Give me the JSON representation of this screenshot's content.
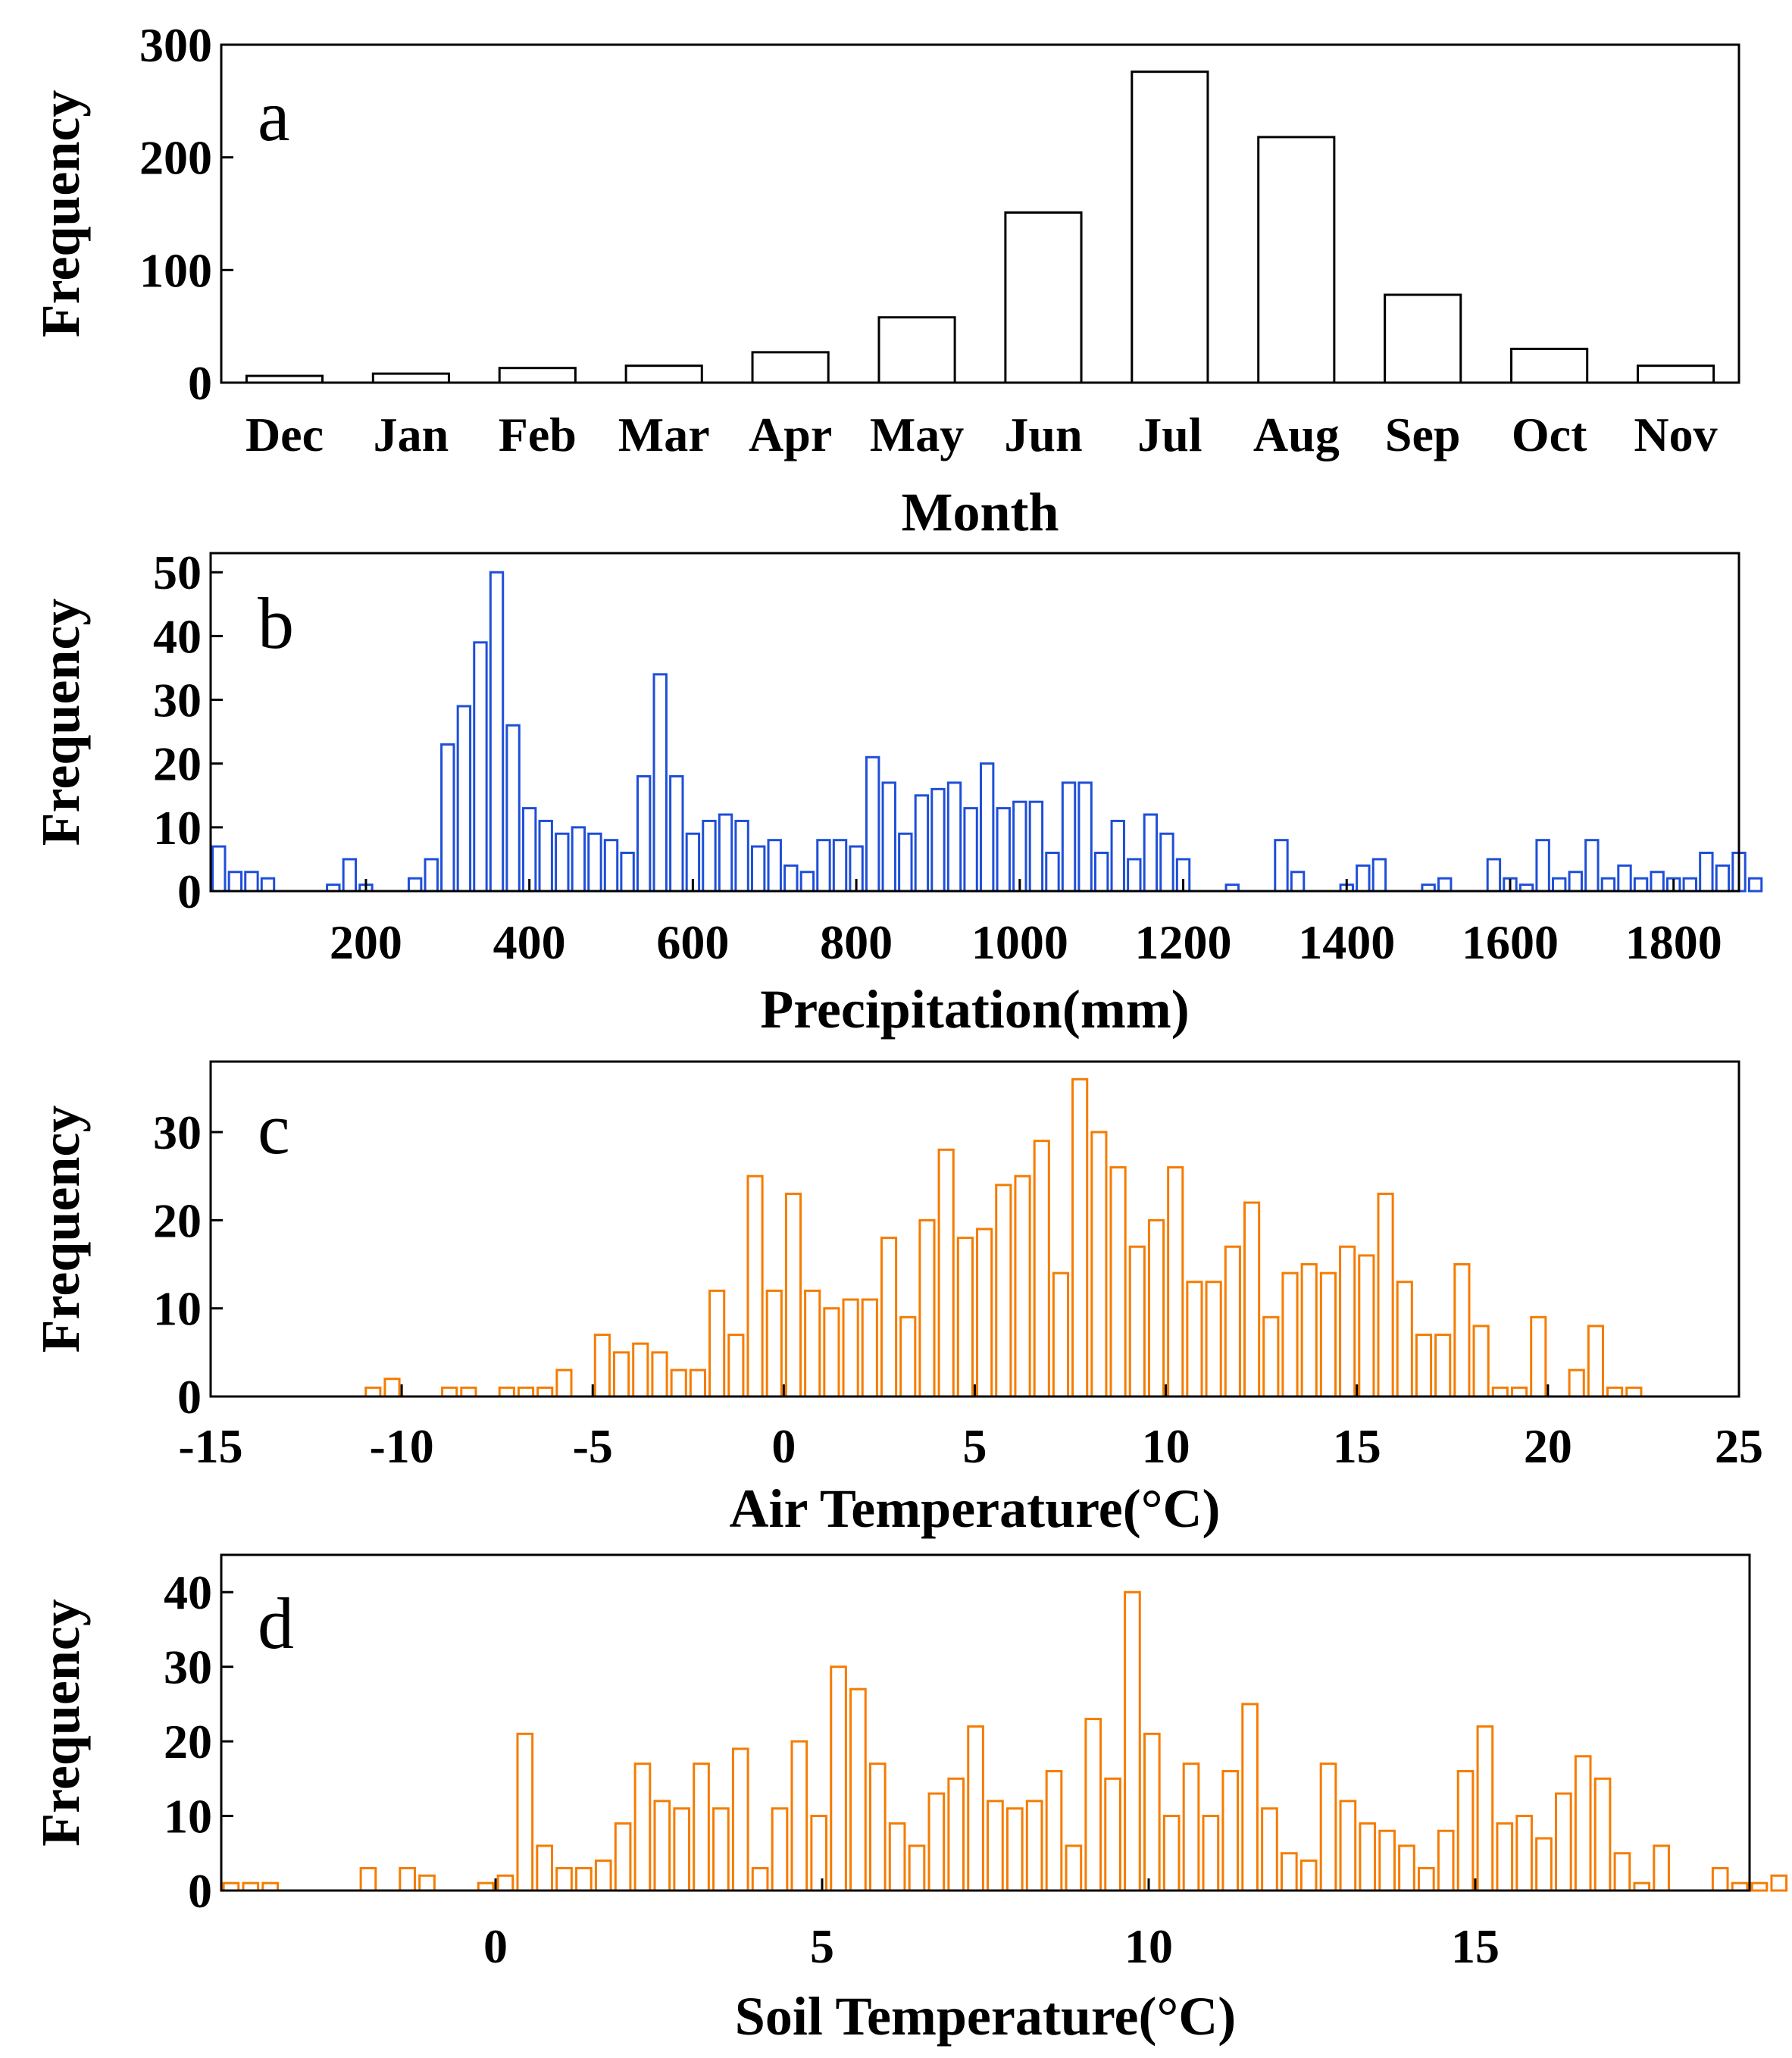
{
  "colors": {
    "panel_a": "#000000",
    "panel_b": "#1f4fd8",
    "panel_c": "#f57c00",
    "panel_d": "#f57c00"
  },
  "chart_data": [
    {
      "id": "a",
      "type": "bar",
      "panel_letter": "a",
      "xlabel": "Month",
      "ylabel": "Frequency",
      "categories": [
        "Dec",
        "Jan",
        "Feb",
        "Mar",
        "Apr",
        "May",
        "Jun",
        "Jul",
        "Aug",
        "Sep",
        "Oct",
        "Nov"
      ],
      "values": [
        6,
        8,
        13,
        15,
        27,
        58,
        151,
        276,
        218,
        78,
        30,
        15
      ],
      "ylim": [
        0,
        300
      ],
      "yticks": [
        0,
        100,
        200,
        300
      ],
      "ytick_labels": [
        "0",
        "100",
        "200",
        "300"
      ]
    },
    {
      "id": "b",
      "type": "bar",
      "panel_letter": "b",
      "xlabel": "Precipitation(mm)",
      "ylabel": "Frequency",
      "x_start": 10,
      "bin_width": 20,
      "xlim": [
        10,
        1880
      ],
      "ylim": [
        0,
        53
      ],
      "xticks": [
        200,
        400,
        600,
        800,
        1000,
        1200,
        1400,
        1600,
        1800
      ],
      "xtick_labels": [
        "200",
        "400",
        "600",
        "800",
        "1000",
        "1200",
        "1400",
        "1600",
        "1800"
      ],
      "yticks": [
        0,
        10,
        20,
        30,
        40,
        50
      ],
      "ytick_labels": [
        "0",
        "10",
        "20",
        "30",
        "40",
        "50"
      ],
      "values": [
        7,
        3,
        3,
        2,
        0,
        0,
        0,
        1,
        5,
        1,
        0,
        0,
        2,
        5,
        23,
        29,
        39,
        50,
        26,
        13,
        11,
        9,
        10,
        9,
        8,
        6,
        18,
        34,
        18,
        9,
        11,
        12,
        11,
        7,
        8,
        4,
        3,
        8,
        8,
        7,
        21,
        17,
        9,
        15,
        16,
        17,
        13,
        20,
        13,
        14,
        14,
        6,
        17,
        17,
        6,
        11,
        5,
        12,
        9,
        5,
        0,
        0,
        1,
        0,
        0,
        8,
        3,
        0,
        0,
        1,
        4,
        5,
        0,
        0,
        1,
        2,
        0,
        0,
        5,
        2,
        1,
        8,
        2,
        3,
        8,
        2,
        4,
        2,
        3,
        2,
        2,
        6,
        4,
        6,
        2,
        0,
        0,
        0,
        1,
        1,
        0,
        0,
        0,
        0
      ]
    },
    {
      "id": "c",
      "type": "bar",
      "panel_letter": "c",
      "xlabel": "Air Temperature(°C)",
      "ylabel": "Frequency",
      "x_start": -15,
      "bin_width": 0.5,
      "xlim": [
        -15,
        25
      ],
      "ylim": [
        0,
        38
      ],
      "xticks": [
        -15,
        -10,
        -5,
        0,
        5,
        10,
        15,
        20,
        25
      ],
      "xtick_labels": [
        "-15",
        "-10",
        "-5",
        "0",
        "5",
        "10",
        "15",
        "20",
        "25"
      ],
      "yticks": [
        0,
        10,
        20,
        30
      ],
      "ytick_labels": [
        "0",
        "10",
        "20",
        "30"
      ],
      "values": [
        0,
        0,
        0,
        0,
        0,
        0,
        0,
        0,
        1,
        2,
        0,
        0,
        1,
        1,
        0,
        1,
        1,
        1,
        3,
        0,
        7,
        5,
        6,
        5,
        3,
        3,
        12,
        7,
        25,
        12,
        23,
        12,
        10,
        11,
        11,
        18,
        9,
        20,
        28,
        18,
        19,
        24,
        25,
        29,
        14,
        36,
        30,
        26,
        17,
        20,
        26,
        13,
        13,
        17,
        22,
        9,
        14,
        15,
        14,
        17,
        16,
        23,
        13,
        7,
        7,
        15,
        8,
        1,
        1,
        9,
        0,
        3,
        8,
        1,
        1,
        0,
        0,
        0,
        0,
        0
      ]
    },
    {
      "id": "d",
      "type": "bar",
      "panel_letter": "d",
      "xlabel": "Soil Temperature(°C)",
      "ylabel": "Frequency",
      "x_start": -4.2,
      "bin_width": 0.3,
      "xlim": [
        -4.2,
        19.2
      ],
      "ylim": [
        0,
        45
      ],
      "xticks": [
        0,
        5,
        10,
        15
      ],
      "xtick_labels": [
        "0",
        "5",
        "10",
        "15"
      ],
      "yticks": [
        0,
        10,
        20,
        30,
        40
      ],
      "ytick_labels": [
        "0",
        "10",
        "20",
        "30",
        "40"
      ],
      "values": [
        1,
        1,
        1,
        0,
        0,
        0,
        0,
        3,
        0,
        3,
        2,
        0,
        0,
        1,
        2,
        21,
        6,
        3,
        3,
        4,
        9,
        17,
        12,
        11,
        17,
        11,
        19,
        3,
        11,
        20,
        10,
        30,
        27,
        17,
        9,
        6,
        13,
        15,
        22,
        12,
        11,
        12,
        16,
        6,
        23,
        15,
        40,
        21,
        10,
        17,
        10,
        16,
        25,
        11,
        5,
        4,
        17,
        12,
        9,
        8,
        6,
        3,
        8,
        16,
        22,
        9,
        10,
        7,
        13,
        18,
        15,
        5,
        1,
        6,
        0,
        0,
        3,
        1,
        1,
        2
      ]
    }
  ]
}
